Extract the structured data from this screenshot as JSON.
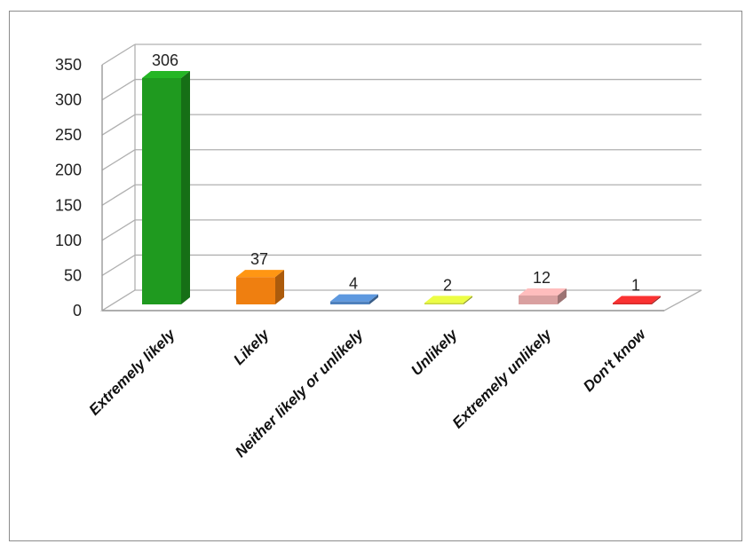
{
  "chart_data": {
    "type": "bar",
    "style": "3d-column",
    "categories": [
      "Extremely likely",
      "Likely",
      "Neither likely or unlikely",
      "Unlikely",
      "Extremely unlikely",
      "Don't know"
    ],
    "values": [
      306,
      37,
      4,
      2,
      12,
      1
    ],
    "data_labels": [
      "306",
      "37",
      "4",
      "2",
      "12",
      "1"
    ],
    "colors": [
      "#1f9a1f",
      "#ef7f10",
      "#4f81bd",
      "#c8d63a",
      "#d9a0a0",
      "#d42a2a"
    ],
    "yticks": [
      0,
      50,
      100,
      150,
      200,
      250,
      300,
      350
    ],
    "ylim": [
      0,
      350
    ],
    "grid": true,
    "legend": "none",
    "title": "",
    "xlabel": "",
    "ylabel": ""
  }
}
